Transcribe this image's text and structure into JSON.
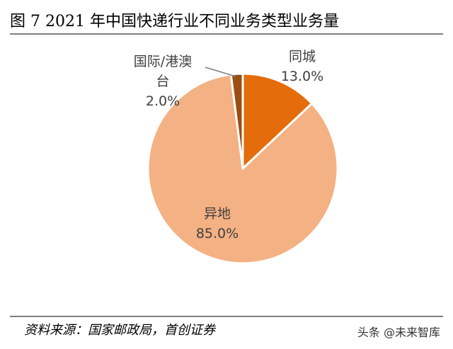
{
  "figure_title": "图 7 2021 年中国快递行业不同业务类型业务量",
  "source_text": "资料来源：国家邮政局，首创证券",
  "watermark_text": "头条 @未来智库",
  "chart_data": {
    "type": "pie",
    "title": "图 7 2021 年中国快递行业不同业务类型业务量",
    "slices": [
      {
        "label": "同城",
        "value": 13.0,
        "value_text": "13.0%",
        "color": "#e46c0a"
      },
      {
        "label": "异地",
        "value": 85.0,
        "value_text": "85.0%",
        "color": "#f4b183"
      },
      {
        "label": "国际/港澳台",
        "label_lines": [
          "国际/港澳",
          "台"
        ],
        "value": 2.0,
        "value_text": "2.0%",
        "color": "#9c4d12"
      }
    ],
    "start_angle_deg": 0,
    "direction": "clockwise",
    "legend": "none"
  }
}
